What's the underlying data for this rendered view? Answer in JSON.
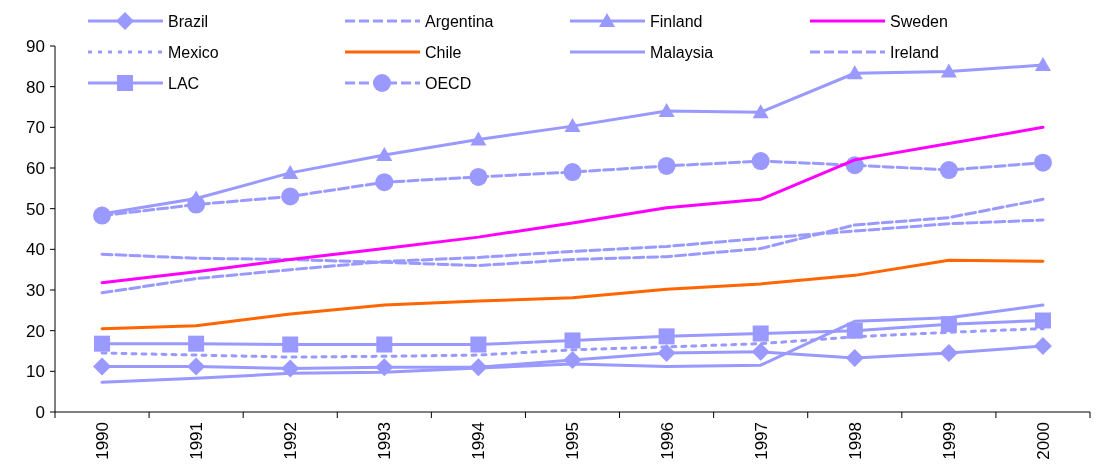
{
  "chart_data": {
    "type": "line",
    "categories": [
      "1990",
      "1991",
      "1992",
      "1993",
      "1994",
      "1995",
      "1996",
      "1997",
      "1998",
      "1999",
      "2000"
    ],
    "ylim": [
      0,
      90
    ],
    "yticks": [
      0,
      10,
      20,
      30,
      40,
      50,
      60,
      70,
      80,
      90
    ],
    "grid": false,
    "legend": "top",
    "series": [
      {
        "name": "Brazil",
        "color": "#9999ff",
        "marker": "diamond",
        "line_style": "solid",
        "values": [
          11.2,
          11.2,
          10.7,
          11,
          11,
          12.8,
          14.5,
          14.8,
          13.3,
          14.5,
          16.2
        ]
      },
      {
        "name": "Argentina",
        "color": "#9999ff",
        "marker": "none",
        "line_style": "dashed",
        "values": [
          38.8,
          37.8,
          37.5,
          36.8,
          36,
          37.5,
          38.2,
          40.2,
          46,
          47.8,
          52.3
        ]
      },
      {
        "name": "Finland",
        "color": "#9999ff",
        "marker": "triangle",
        "line_style": "solid",
        "values": [
          48.7,
          52.5,
          58.8,
          63.2,
          67,
          70.3,
          74,
          73.7,
          83.3,
          83.7,
          85.3
        ]
      },
      {
        "name": "Sweden",
        "color": "#ff00ff",
        "marker": "none",
        "line_style": "solid",
        "values": [
          31.8,
          34.5,
          37.5,
          40.2,
          43,
          46.5,
          50.2,
          52.3,
          62,
          66,
          70
        ]
      },
      {
        "name": "Mexico",
        "color": "#9999ff",
        "marker": "none",
        "line_style": "dotted",
        "values": [
          14.5,
          14,
          13.5,
          13.7,
          14,
          15.3,
          16,
          16.8,
          18.5,
          19.6,
          20.5
        ]
      },
      {
        "name": "Chile",
        "color": "#ff6600",
        "marker": "none",
        "line_style": "solid",
        "values": [
          20.5,
          21.2,
          24.1,
          26.3,
          27.3,
          28.1,
          30.2,
          31.5,
          33.6,
          37.3,
          37.1
        ]
      },
      {
        "name": "Malaysia",
        "color": "#9999ff",
        "marker": "none",
        "line_style": "solid",
        "values": [
          7.3,
          8.3,
          9.5,
          9.8,
          10.8,
          11.8,
          11.2,
          11.5,
          22.3,
          23.2,
          26.3
        ]
      },
      {
        "name": "Ireland",
        "color": "#9999ff",
        "marker": "none",
        "line_style": "dashed",
        "values": [
          29.3,
          32.8,
          35,
          37,
          38,
          39.5,
          40.7,
          42.7,
          44.5,
          46.3,
          47.2
        ]
      },
      {
        "name": "LAC",
        "color": "#9999ff",
        "marker": "square",
        "line_style": "solid",
        "values": [
          16.8,
          16.8,
          16.6,
          16.6,
          16.6,
          17.6,
          18.6,
          19.3,
          20,
          21.6,
          22.5
        ]
      },
      {
        "name": "OECD",
        "color": "#9999ff",
        "marker": "circle",
        "line_style": "dashed",
        "values": [
          48.3,
          51,
          53,
          56.5,
          57.8,
          59,
          60.5,
          61.7,
          60.7,
          59.5,
          61.3
        ]
      }
    ]
  }
}
